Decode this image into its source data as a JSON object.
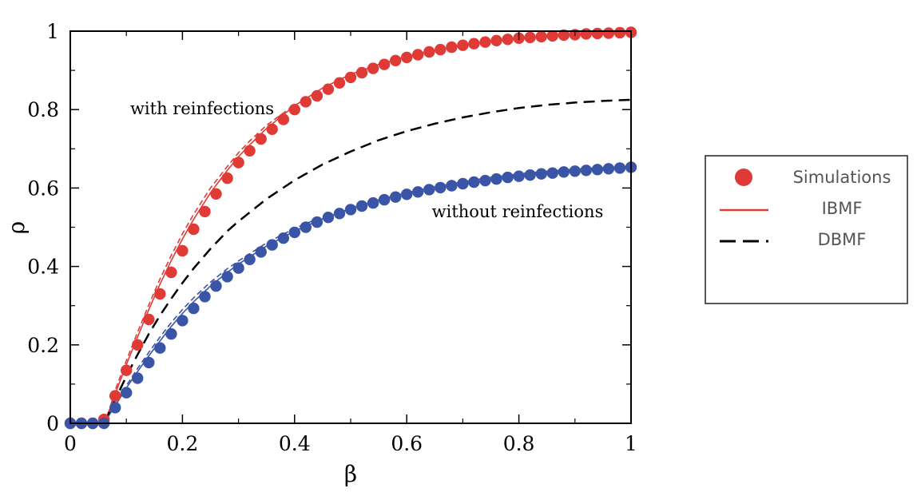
{
  "chart_data": {
    "type": "scatter",
    "xlabel": "β",
    "ylabel": "ρ",
    "xlim": [
      0,
      1
    ],
    "ylim": [
      0,
      1
    ],
    "grid": false,
    "legend_placement": "outside-right",
    "x_ticks": [
      0,
      0.2,
      0.4,
      0.6,
      0.8,
      1
    ],
    "y_ticks": [
      0,
      0.2,
      0.4,
      0.6,
      0.8,
      1
    ],
    "x_tick_labels": [
      "0",
      "0.2",
      "0.4",
      "0.6",
      "0.8",
      "1"
    ],
    "y_tick_labels": [
      "0",
      "0.2",
      "0.4",
      "0.6",
      "0.8",
      "1"
    ],
    "colors": {
      "red": "#e03a36",
      "blue": "#3a55a6",
      "black": "#000000"
    },
    "legend": [
      {
        "label": "Simulations",
        "style": "marker",
        "color": "#e03a36"
      },
      {
        "label": "IBMF",
        "style": "solid",
        "color": "#e03a36"
      },
      {
        "label": "DBMF",
        "style": "dashed",
        "color": "#000000"
      }
    ],
    "annotations": [
      {
        "text": "with reinfections",
        "x": 0.25,
        "y": 0.8
      },
      {
        "text": "without reinfections",
        "x": 0.66,
        "y": 0.54
      }
    ],
    "series": [
      {
        "kind": "markers",
        "color": "#e03a36",
        "x": [
          0,
          0.02,
          0.04,
          0.06,
          0.08,
          0.1,
          0.12,
          0.14,
          0.16,
          0.18,
          0.2,
          0.22,
          0.24,
          0.26,
          0.28,
          0.3,
          0.32,
          0.34,
          0.36,
          0.38,
          0.4,
          0.42,
          0.44,
          0.46,
          0.48,
          0.5,
          0.52,
          0.54,
          0.56,
          0.58,
          0.6,
          0.62,
          0.64,
          0.66,
          0.68,
          0.7,
          0.72,
          0.74,
          0.76,
          0.78,
          0.8,
          0.82,
          0.84,
          0.86,
          0.88,
          0.9,
          0.92,
          0.94,
          0.96,
          0.98,
          1.0
        ],
        "y": [
          0,
          0,
          0,
          0.01,
          0.07,
          0.135,
          0.2,
          0.265,
          0.33,
          0.385,
          0.44,
          0.495,
          0.54,
          0.585,
          0.625,
          0.665,
          0.695,
          0.725,
          0.75,
          0.775,
          0.8,
          0.82,
          0.835,
          0.852,
          0.868,
          0.882,
          0.894,
          0.905,
          0.915,
          0.925,
          0.933,
          0.94,
          0.947,
          0.953,
          0.959,
          0.964,
          0.968,
          0.972,
          0.976,
          0.979,
          0.982,
          0.984,
          0.986,
          0.988,
          0.99,
          0.991,
          0.993,
          0.994,
          0.995,
          0.996,
          0.997
        ]
      },
      {
        "kind": "markers",
        "color": "#3a55a6",
        "x": [
          0,
          0.02,
          0.04,
          0.06,
          0.08,
          0.1,
          0.12,
          0.14,
          0.16,
          0.18,
          0.2,
          0.22,
          0.24,
          0.26,
          0.28,
          0.3,
          0.32,
          0.34,
          0.36,
          0.38,
          0.4,
          0.42,
          0.44,
          0.46,
          0.48,
          0.5,
          0.52,
          0.54,
          0.56,
          0.58,
          0.6,
          0.62,
          0.64,
          0.66,
          0.68,
          0.7,
          0.72,
          0.74,
          0.76,
          0.78,
          0.8,
          0.82,
          0.84,
          0.86,
          0.88,
          0.9,
          0.92,
          0.94,
          0.96,
          0.98,
          1.0
        ],
        "y": [
          0,
          0,
          0,
          0,
          0.04,
          0.078,
          0.115,
          0.155,
          0.192,
          0.228,
          0.262,
          0.293,
          0.323,
          0.35,
          0.374,
          0.396,
          0.418,
          0.437,
          0.455,
          0.472,
          0.487,
          0.5,
          0.513,
          0.525,
          0.535,
          0.545,
          0.554,
          0.562,
          0.57,
          0.577,
          0.584,
          0.59,
          0.596,
          0.601,
          0.606,
          0.611,
          0.615,
          0.619,
          0.623,
          0.627,
          0.63,
          0.633,
          0.636,
          0.638,
          0.641,
          0.643,
          0.645,
          0.647,
          0.649,
          0.651,
          0.653
        ]
      },
      {
        "kind": "line-solid",
        "color": "#e03a36",
        "x": [
          0,
          0.06,
          0.07,
          0.08,
          0.1,
          0.12,
          0.14,
          0.16,
          0.18,
          0.2,
          0.22,
          0.25,
          0.28,
          0.3,
          0.32,
          0.35,
          0.4,
          0.45,
          0.5,
          0.55,
          0.6,
          0.65,
          0.7,
          0.75,
          0.8,
          0.85,
          0.9,
          0.95,
          1.0
        ],
        "y": [
          0,
          0,
          0.03,
          0.075,
          0.15,
          0.22,
          0.29,
          0.355,
          0.415,
          0.47,
          0.52,
          0.588,
          0.645,
          0.68,
          0.71,
          0.752,
          0.81,
          0.855,
          0.89,
          0.915,
          0.935,
          0.952,
          0.964,
          0.974,
          0.982,
          0.988,
          0.992,
          0.995,
          0.997
        ]
      },
      {
        "kind": "line-dashed",
        "color": "#e03a36",
        "x": [
          0,
          0.06,
          0.07,
          0.08,
          0.1,
          0.12,
          0.14,
          0.16,
          0.18,
          0.2,
          0.22,
          0.25,
          0.28,
          0.3,
          0.32,
          0.35,
          0.4
        ],
        "y": [
          0,
          0,
          0.035,
          0.085,
          0.16,
          0.232,
          0.302,
          0.368,
          0.428,
          0.483,
          0.533,
          0.6,
          0.655,
          0.69,
          0.72,
          0.76,
          0.812
        ]
      },
      {
        "kind": "line-solid",
        "color": "#3a55a6",
        "x": [
          0,
          0.06,
          0.08,
          0.1,
          0.12,
          0.14,
          0.16,
          0.18,
          0.2,
          0.22,
          0.25,
          0.28,
          0.3,
          0.35,
          0.4,
          0.45,
          0.5,
          0.55,
          0.6,
          0.65,
          0.7,
          0.75,
          0.8,
          0.85,
          0.9,
          0.95,
          1.0
        ],
        "y": [
          0,
          0,
          0.045,
          0.09,
          0.132,
          0.172,
          0.21,
          0.247,
          0.28,
          0.31,
          0.35,
          0.385,
          0.406,
          0.452,
          0.49,
          0.522,
          0.548,
          0.57,
          0.588,
          0.603,
          0.616,
          0.627,
          0.636,
          0.643,
          0.648,
          0.652,
          0.655
        ]
      },
      {
        "kind": "line-dashed",
        "color": "#3a55a6",
        "x": [
          0,
          0.06,
          0.08,
          0.1,
          0.12,
          0.14,
          0.16,
          0.18,
          0.2,
          0.22,
          0.25,
          0.28,
          0.3,
          0.35,
          0.4,
          0.45
        ],
        "y": [
          0,
          0,
          0.05,
          0.096,
          0.14,
          0.181,
          0.22,
          0.257,
          0.29,
          0.32,
          0.36,
          0.394,
          0.414,
          0.46,
          0.497,
          0.527
        ]
      },
      {
        "kind": "line-dashed",
        "color": "#000000",
        "x": [
          0,
          0.06,
          0.08,
          0.1,
          0.12,
          0.14,
          0.16,
          0.18,
          0.2,
          0.22,
          0.25,
          0.28,
          0.3,
          0.35,
          0.4,
          0.45,
          0.5,
          0.55,
          0.6,
          0.65,
          0.7,
          0.75,
          0.8,
          0.85,
          0.9,
          0.95,
          1.0
        ],
        "y": [
          0,
          0,
          0.06,
          0.12,
          0.175,
          0.228,
          0.275,
          0.318,
          0.358,
          0.395,
          0.445,
          0.49,
          0.515,
          0.572,
          0.62,
          0.66,
          0.693,
          0.722,
          0.745,
          0.764,
          0.78,
          0.793,
          0.804,
          0.812,
          0.818,
          0.822,
          0.825
        ]
      }
    ]
  }
}
